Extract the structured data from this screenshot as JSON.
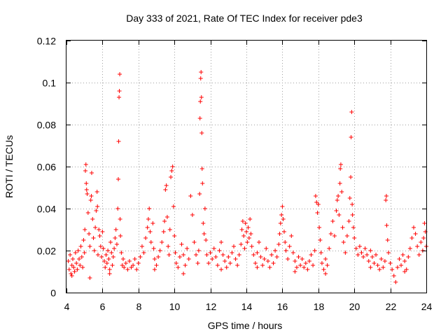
{
  "chart_data": {
    "type": "scatter",
    "title": "Day 333 of 2021, Rate Of TEC Index for receiver pde3",
    "xlabel": "GPS time / hours",
    "ylabel": "ROTI / TECUs",
    "xlim": [
      4,
      24
    ],
    "ylim": [
      0,
      0.12
    ],
    "x_ticks": [
      "4",
      "6",
      "8",
      "10",
      "12",
      "14",
      "16",
      "18",
      "20",
      "22",
      "24"
    ],
    "y_ticks": [
      "0",
      "0.02",
      "0.04",
      "0.06",
      "0.08",
      "0.1",
      "0.12"
    ],
    "grid": true,
    "marker": "+",
    "color": "#ff0000",
    "points": [
      [
        4.1,
        0.015
      ],
      [
        4.15,
        0.011
      ],
      [
        4.2,
        0.018
      ],
      [
        4.25,
        0.009
      ],
      [
        4.3,
        0.013
      ],
      [
        4.35,
        0.016
      ],
      [
        4.4,
        0.012
      ],
      [
        4.45,
        0.01
      ],
      [
        4.5,
        0.019
      ],
      [
        4.55,
        0.014
      ],
      [
        4.6,
        0.011
      ],
      [
        4.65,
        0.02
      ],
      [
        4.7,
        0.016
      ],
      [
        4.75,
        0.013
      ],
      [
        4.8,
        0.022
      ],
      [
        4.85,
        0.017
      ],
      [
        4.9,
        0.012
      ],
      [
        4.95,
        0.025
      ],
      [
        5.0,
        0.019
      ],
      [
        5.02,
        0.03
      ],
      [
        5.05,
        0.058
      ],
      [
        5.08,
        0.061
      ],
      [
        5.1,
        0.052
      ],
      [
        5.12,
        0.049
      ],
      [
        5.15,
        0.047
      ],
      [
        5.2,
        0.038
      ],
      [
        5.25,
        0.028
      ],
      [
        5.3,
        0.022
      ],
      [
        5.35,
        0.044
      ],
      [
        5.38,
        0.046
      ],
      [
        5.4,
        0.057
      ],
      [
        5.45,
        0.035
      ],
      [
        5.5,
        0.026
      ],
      [
        5.55,
        0.02
      ],
      [
        5.6,
        0.031
      ],
      [
        5.65,
        0.039
      ],
      [
        5.7,
        0.048
      ],
      [
        5.72,
        0.041
      ],
      [
        5.75,
        0.018
      ],
      [
        5.8,
        0.03
      ],
      [
        5.85,
        0.027
      ],
      [
        5.9,
        0.022
      ],
      [
        5.95,
        0.017
      ],
      [
        6.0,
        0.029
      ],
      [
        6.05,
        0.021
      ],
      [
        6.1,
        0.015
      ],
      [
        6.15,
        0.012
      ],
      [
        6.2,
        0.018
      ],
      [
        6.25,
        0.014
      ],
      [
        6.3,
        0.02
      ],
      [
        6.35,
        0.016
      ],
      [
        6.4,
        0.011
      ],
      [
        6.45,
        0.024
      ],
      [
        6.5,
        0.019
      ],
      [
        6.55,
        0.013
      ],
      [
        6.6,
        0.017
      ],
      [
        6.65,
        0.021
      ],
      [
        6.7,
        0.026
      ],
      [
        6.75,
        0.03
      ],
      [
        6.8,
        0.023
      ],
      [
        6.85,
        0.04
      ],
      [
        6.88,
        0.054
      ],
      [
        6.9,
        0.072
      ],
      [
        6.92,
        0.093
      ],
      [
        6.94,
        0.096
      ],
      [
        6.96,
        0.104
      ],
      [
        6.98,
        0.035
      ],
      [
        7.0,
        0.027
      ],
      [
        7.05,
        0.019
      ],
      [
        7.1,
        0.013
      ],
      [
        7.15,
        0.016
      ],
      [
        7.2,
        0.012
      ],
      [
        7.3,
        0.014
      ],
      [
        7.4,
        0.011
      ],
      [
        7.5,
        0.015
      ],
      [
        7.6,
        0.012
      ],
      [
        7.7,
        0.013
      ],
      [
        7.8,
        0.016
      ],
      [
        7.9,
        0.011
      ],
      [
        8.0,
        0.014
      ],
      [
        8.1,
        0.017
      ],
      [
        8.2,
        0.022
      ],
      [
        8.3,
        0.019
      ],
      [
        8.4,
        0.026
      ],
      [
        8.5,
        0.031
      ],
      [
        8.55,
        0.035
      ],
      [
        8.6,
        0.04
      ],
      [
        8.65,
        0.029
      ],
      [
        8.7,
        0.024
      ],
      [
        8.8,
        0.033
      ],
      [
        8.85,
        0.021
      ],
      [
        8.9,
        0.016
      ],
      [
        9.0,
        0.013
      ],
      [
        9.1,
        0.017
      ],
      [
        9.2,
        0.02
      ],
      [
        9.3,
        0.024
      ],
      [
        9.4,
        0.029
      ],
      [
        9.45,
        0.034
      ],
      [
        9.5,
        0.049
      ],
      [
        9.55,
        0.051
      ],
      [
        9.6,
        0.036
      ],
      [
        9.65,
        0.022
      ],
      [
        9.7,
        0.018
      ],
      [
        9.75,
        0.03
      ],
      [
        9.8,
        0.055
      ],
      [
        9.85,
        0.058
      ],
      [
        9.9,
        0.06
      ],
      [
        9.95,
        0.041
      ],
      [
        10.0,
        0.027
      ],
      [
        10.05,
        0.019
      ],
      [
        10.1,
        0.014
      ],
      [
        10.2,
        0.012
      ],
      [
        10.3,
        0.017
      ],
      [
        10.4,
        0.023
      ],
      [
        10.5,
        0.018
      ],
      [
        10.6,
        0.013
      ],
      [
        10.7,
        0.021
      ],
      [
        10.8,
        0.016
      ],
      [
        10.9,
        0.046
      ],
      [
        11.0,
        0.037
      ],
      [
        11.1,
        0.024
      ],
      [
        11.2,
        0.018
      ],
      [
        11.3,
        0.014
      ],
      [
        11.35,
        0.02
      ],
      [
        11.4,
        0.047
      ],
      [
        11.42,
        0.083
      ],
      [
        11.44,
        0.091
      ],
      [
        11.46,
        0.102
      ],
      [
        11.48,
        0.105
      ],
      [
        11.5,
        0.093
      ],
      [
        11.52,
        0.076
      ],
      [
        11.54,
        0.059
      ],
      [
        11.56,
        0.052
      ],
      [
        11.6,
        0.033
      ],
      [
        11.65,
        0.028
      ],
      [
        11.7,
        0.04
      ],
      [
        11.75,
        0.025
      ],
      [
        11.8,
        0.018
      ],
      [
        11.9,
        0.014
      ],
      [
        12.0,
        0.019
      ],
      [
        12.1,
        0.016
      ],
      [
        12.2,
        0.021
      ],
      [
        12.3,
        0.017
      ],
      [
        12.4,
        0.013
      ],
      [
        12.5,
        0.02
      ],
      [
        12.6,
        0.024
      ],
      [
        12.7,
        0.018
      ],
      [
        12.8,
        0.015
      ],
      [
        12.9,
        0.012
      ],
      [
        13.0,
        0.017
      ],
      [
        13.1,
        0.014
      ],
      [
        13.2,
        0.019
      ],
      [
        13.3,
        0.022
      ],
      [
        13.4,
        0.016
      ],
      [
        13.5,
        0.013
      ],
      [
        13.6,
        0.018
      ],
      [
        13.7,
        0.023
      ],
      [
        13.75,
        0.03
      ],
      [
        13.8,
        0.034
      ],
      [
        13.85,
        0.027
      ],
      [
        13.9,
        0.021
      ],
      [
        13.95,
        0.033
      ],
      [
        14.0,
        0.029
      ],
      [
        14.05,
        0.024
      ],
      [
        14.1,
        0.031
      ],
      [
        14.15,
        0.026
      ],
      [
        14.2,
        0.035
      ],
      [
        14.25,
        0.028
      ],
      [
        14.3,
        0.022
      ],
      [
        14.4,
        0.018
      ],
      [
        14.5,
        0.014
      ],
      [
        14.6,
        0.019
      ],
      [
        14.7,
        0.024
      ],
      [
        14.8,
        0.017
      ],
      [
        14.9,
        0.013
      ],
      [
        15.0,
        0.016
      ],
      [
        15.1,
        0.021
      ],
      [
        15.2,
        0.015
      ],
      [
        15.3,
        0.012
      ],
      [
        15.4,
        0.018
      ],
      [
        15.5,
        0.014
      ],
      [
        15.6,
        0.02
      ],
      [
        15.7,
        0.017
      ],
      [
        15.8,
        0.023
      ],
      [
        15.85,
        0.028
      ],
      [
        15.9,
        0.033
      ],
      [
        15.95,
        0.037
      ],
      [
        16.0,
        0.041
      ],
      [
        16.05,
        0.035
      ],
      [
        16.1,
        0.029
      ],
      [
        16.15,
        0.024
      ],
      [
        16.2,
        0.02
      ],
      [
        16.3,
        0.016
      ],
      [
        16.4,
        0.022
      ],
      [
        16.5,
        0.027
      ],
      [
        16.6,
        0.019
      ],
      [
        16.7,
        0.015
      ],
      [
        16.8,
        0.012
      ],
      [
        16.9,
        0.017
      ],
      [
        17.0,
        0.013
      ],
      [
        17.1,
        0.016
      ],
      [
        17.2,
        0.012
      ],
      [
        17.3,
        0.014
      ],
      [
        17.4,
        0.011
      ],
      [
        17.5,
        0.015
      ],
      [
        17.6,
        0.018
      ],
      [
        17.7,
        0.013
      ],
      [
        17.8,
        0.02
      ],
      [
        17.85,
        0.046
      ],
      [
        17.9,
        0.043
      ],
      [
        17.95,
        0.038
      ],
      [
        18.0,
        0.042
      ],
      [
        18.05,
        0.031
      ],
      [
        18.1,
        0.025
      ],
      [
        18.15,
        0.019
      ],
      [
        18.2,
        0.014
      ],
      [
        18.3,
        0.011
      ],
      [
        18.4,
        0.016
      ],
      [
        18.5,
        0.013
      ],
      [
        18.6,
        0.021
      ],
      [
        18.7,
        0.028
      ],
      [
        18.8,
        0.034
      ],
      [
        18.9,
        0.027
      ],
      [
        19.0,
        0.039
      ],
      [
        19.05,
        0.044
      ],
      [
        19.1,
        0.046
      ],
      [
        19.15,
        0.037
      ],
      [
        19.2,
        0.052
      ],
      [
        19.22,
        0.059
      ],
      [
        19.25,
        0.061
      ],
      [
        19.3,
        0.048
      ],
      [
        19.35,
        0.031
      ],
      [
        19.4,
        0.024
      ],
      [
        19.5,
        0.019
      ],
      [
        19.6,
        0.027
      ],
      [
        19.7,
        0.034
      ],
      [
        19.75,
        0.045
      ],
      [
        19.8,
        0.055
      ],
      [
        19.82,
        0.074
      ],
      [
        19.85,
        0.086
      ],
      [
        19.88,
        0.042
      ],
      [
        19.9,
        0.037
      ],
      [
        19.95,
        0.031
      ],
      [
        20.0,
        0.026
      ],
      [
        20.1,
        0.021
      ],
      [
        20.2,
        0.018
      ],
      [
        20.3,
        0.022
      ],
      [
        20.4,
        0.019
      ],
      [
        20.5,
        0.017
      ],
      [
        20.6,
        0.021
      ],
      [
        20.7,
        0.018
      ],
      [
        20.8,
        0.015
      ],
      [
        20.9,
        0.02
      ],
      [
        21.0,
        0.017
      ],
      [
        21.1,
        0.014
      ],
      [
        21.2,
        0.018
      ],
      [
        21.3,
        0.013
      ],
      [
        21.4,
        0.011
      ],
      [
        21.5,
        0.016
      ],
      [
        21.6,
        0.012
      ],
      [
        21.7,
        0.015
      ],
      [
        21.75,
        0.044
      ],
      [
        21.78,
        0.046
      ],
      [
        21.8,
        0.032
      ],
      [
        21.85,
        0.025
      ],
      [
        21.9,
        0.019
      ],
      [
        22.0,
        0.014
      ],
      [
        22.1,
        0.011
      ],
      [
        22.2,
        0.008
      ],
      [
        22.3,
        0.005
      ],
      [
        22.4,
        0.012
      ],
      [
        22.5,
        0.016
      ],
      [
        22.6,
        0.013
      ],
      [
        22.7,
        0.018
      ],
      [
        22.8,
        0.015
      ],
      [
        22.9,
        0.011
      ],
      [
        23.0,
        0.017
      ],
      [
        23.1,
        0.021
      ],
      [
        23.2,
        0.026
      ],
      [
        23.3,
        0.031
      ],
      [
        23.4,
        0.028
      ],
      [
        23.5,
        0.022
      ],
      [
        23.6,
        0.018
      ],
      [
        23.7,
        0.024
      ],
      [
        23.8,
        0.02
      ],
      [
        23.85,
        0.026
      ],
      [
        23.9,
        0.033
      ],
      [
        23.95,
        0.029
      ],
      [
        24.0,
        0.022
      ],
      [
        4.3,
        0.008
      ],
      [
        5.3,
        0.007
      ],
      [
        6.4,
        0.009
      ],
      [
        8.9,
        0.011
      ],
      [
        10.5,
        0.009
      ],
      [
        12.6,
        0.011
      ],
      [
        14.6,
        0.012
      ],
      [
        16.7,
        0.01
      ],
      [
        18.4,
        0.009
      ],
      [
        20.9,
        0.012
      ],
      [
        22.8,
        0.01
      ]
    ]
  }
}
